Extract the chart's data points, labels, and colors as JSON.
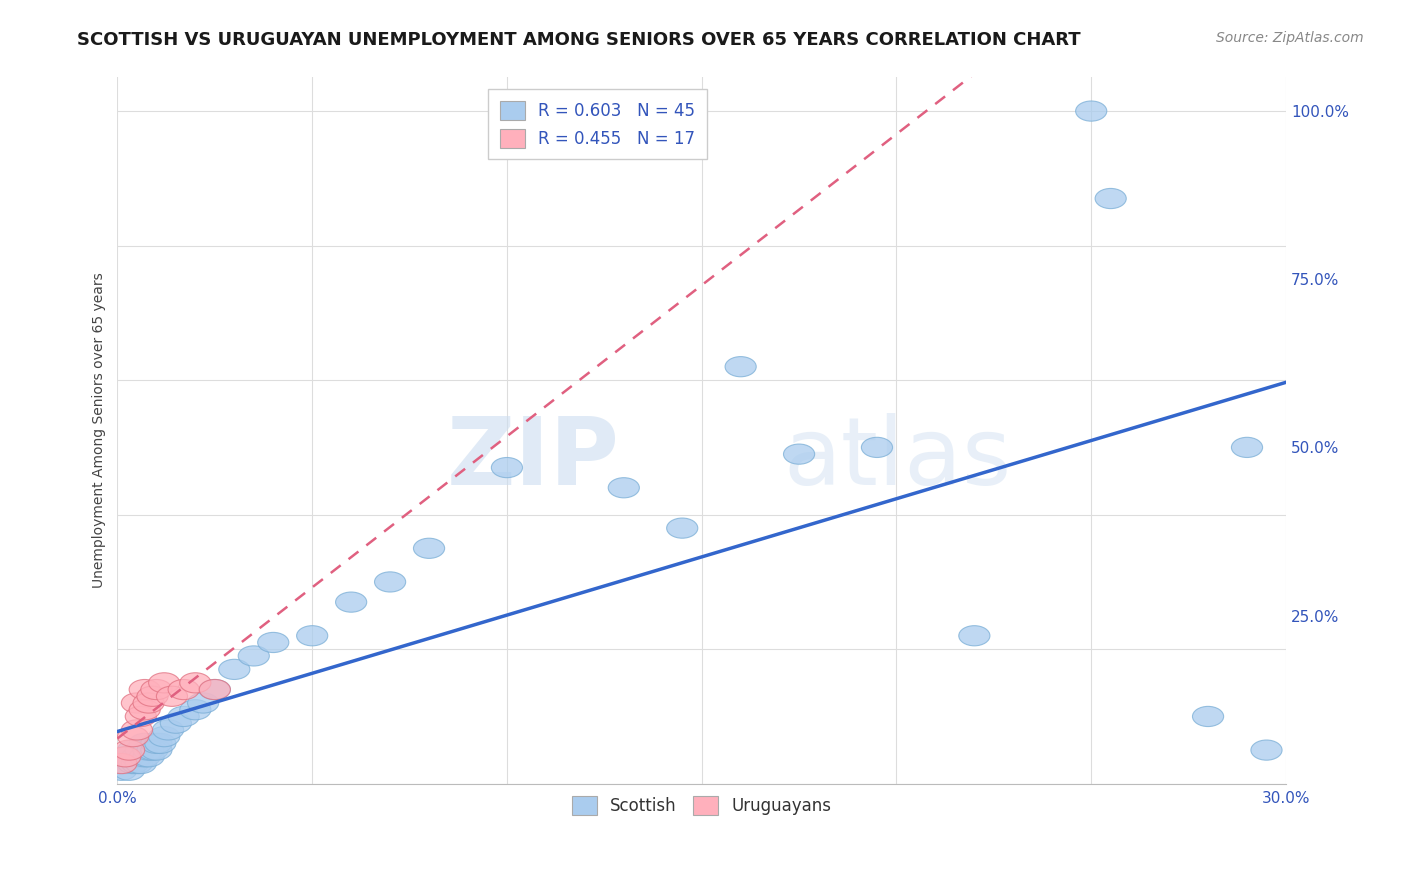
{
  "title": "SCOTTISH VS URUGUAYAN UNEMPLOYMENT AMONG SENIORS OVER 65 YEARS CORRELATION CHART",
  "source": "Source: ZipAtlas.com",
  "ylabel": "Unemployment Among Seniors over 65 years",
  "xlim": [
    0.0,
    0.3
  ],
  "ylim": [
    0.0,
    1.05
  ],
  "xticks": [
    0.0,
    0.05,
    0.1,
    0.15,
    0.2,
    0.25,
    0.3
  ],
  "xtick_labels": [
    "0.0%",
    "",
    "",
    "",
    "",
    "",
    "30.0%"
  ],
  "ytick_right_vals": [
    0.0,
    0.25,
    0.5,
    0.75,
    1.0
  ],
  "ytick_right_labels": [
    "",
    "25.0%",
    "50.0%",
    "75.0%",
    "100.0%"
  ],
  "scottish_R": 0.603,
  "scottish_N": 45,
  "uruguayan_R": 0.455,
  "uruguayan_N": 17,
  "scottish_color": "#aaccee",
  "scottish_edge_color": "#7aaed6",
  "uruguayan_color": "#ffb0bc",
  "uruguayan_edge_color": "#e07080",
  "scottish_line_color": "#3366cc",
  "uruguayan_line_color": "#e06080",
  "background_color": "#ffffff",
  "grid_color": "#dddddd",
  "scottish_x": [
    0.001,
    0.002,
    0.002,
    0.003,
    0.003,
    0.004,
    0.004,
    0.005,
    0.005,
    0.006,
    0.006,
    0.007,
    0.007,
    0.008,
    0.008,
    0.009,
    0.01,
    0.01,
    0.011,
    0.012,
    0.013,
    0.015,
    0.017,
    0.02,
    0.022,
    0.025,
    0.03,
    0.035,
    0.04,
    0.05,
    0.06,
    0.07,
    0.08,
    0.1,
    0.13,
    0.145,
    0.16,
    0.175,
    0.195,
    0.22,
    0.25,
    0.255,
    0.28,
    0.29,
    0.295
  ],
  "scottish_y": [
    0.02,
    0.03,
    0.04,
    0.02,
    0.04,
    0.03,
    0.05,
    0.03,
    0.04,
    0.03,
    0.05,
    0.04,
    0.06,
    0.04,
    0.05,
    0.05,
    0.05,
    0.06,
    0.06,
    0.07,
    0.08,
    0.09,
    0.1,
    0.11,
    0.12,
    0.14,
    0.17,
    0.19,
    0.21,
    0.22,
    0.27,
    0.3,
    0.35,
    0.47,
    0.44,
    0.38,
    0.62,
    0.49,
    0.5,
    0.22,
    1.0,
    0.87,
    0.1,
    0.5,
    0.05
  ],
  "uruguayan_x": [
    0.001,
    0.002,
    0.003,
    0.004,
    0.005,
    0.005,
    0.006,
    0.007,
    0.007,
    0.008,
    0.009,
    0.01,
    0.012,
    0.014,
    0.017,
    0.02,
    0.025
  ],
  "uruguayan_y": [
    0.03,
    0.04,
    0.05,
    0.07,
    0.08,
    0.12,
    0.1,
    0.11,
    0.14,
    0.12,
    0.13,
    0.14,
    0.15,
    0.13,
    0.14,
    0.15,
    0.14
  ],
  "title_fontsize": 13,
  "source_fontsize": 10,
  "tick_fontsize": 11,
  "ylabel_fontsize": 10,
  "legend_fontsize": 12
}
